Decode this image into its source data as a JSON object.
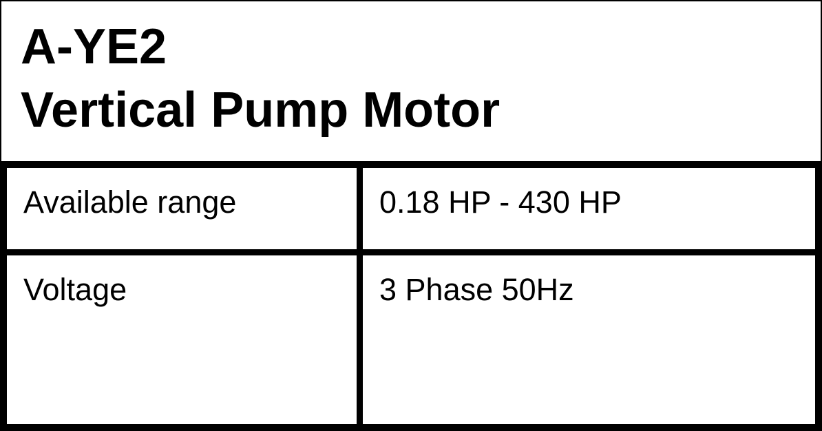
{
  "header": {
    "model": "A-YE2",
    "product_name": "Vertical Pump Motor"
  },
  "colors": {
    "border": "#000000",
    "background": "#ffffff",
    "text": "#000000"
  },
  "spec_table": {
    "rows": [
      {
        "label": "Available range",
        "value": "0.18 HP - 430 HP"
      },
      {
        "label": "Voltage",
        "value": "3 Phase 50Hz"
      }
    ]
  }
}
